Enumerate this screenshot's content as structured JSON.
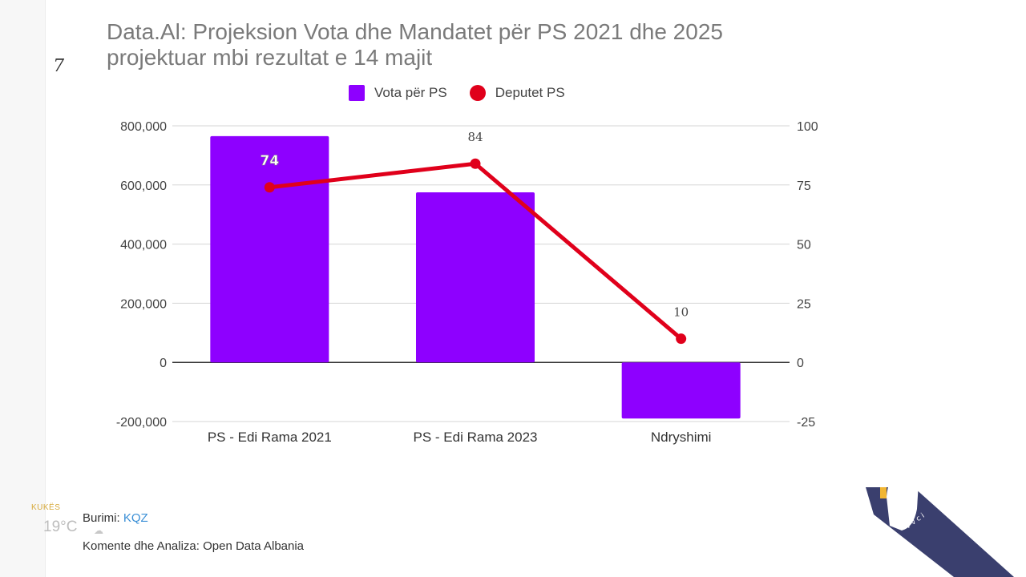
{
  "title_lines": [
    "Data.Al: Projeksion Vota dhe Mandatet për PS 2021 dhe 2025",
    "projektuar mbi rezultat e 14 majit"
  ],
  "legend": {
    "bar_label": "Vota për PS",
    "line_label": "Deputet PS"
  },
  "footer": {
    "source_prefix": "Burimi: ",
    "source_link": "KQZ",
    "comment": "Komente dhe Analiza: Open Data Albania"
  },
  "overlay": {
    "corner_mark": "7",
    "weather_city": "KUKËS",
    "weather_temp": "19°C",
    "weather_icon": "cloud-icon"
  },
  "colors": {
    "bar": "#8e00ff",
    "line": "#e0001b",
    "logo": "#3a3f6e",
    "logo_accent": "#f2b632"
  },
  "chart_data": {
    "type": "bar",
    "title": "Data.Al: Projeksion Vota dhe Mandatet për PS 2021 dhe 2025 projektuar mbi rezultat e 14 majit",
    "categories": [
      "PS - Edi Rama 2021",
      "PS - Edi Rama 2023",
      "Ndryshimi"
    ],
    "series": [
      {
        "name": "Vota për PS",
        "type": "bar",
        "axis": "left",
        "values": [
          765000,
          575000,
          -190000
        ]
      },
      {
        "name": "Deputet PS",
        "type": "line",
        "axis": "right",
        "values": [
          74,
          84,
          10
        ],
        "data_labels": [
          "74",
          "84",
          "10"
        ]
      }
    ],
    "left_axis": {
      "ylim": [
        -200000,
        800000
      ],
      "ticks": [
        800000,
        600000,
        400000,
        200000,
        0,
        -200000
      ],
      "tick_labels": [
        "800,000",
        "600,000",
        "400,000",
        "200,000",
        "0",
        "-200,000"
      ]
    },
    "right_axis": {
      "ylim": [
        -25,
        100
      ],
      "ticks": [
        100,
        75,
        50,
        25,
        0,
        -25
      ],
      "tick_labels": [
        "100",
        "75",
        "50",
        "25",
        "0",
        "-25"
      ]
    },
    "xlabel": "",
    "ylabel": "",
    "grid": true,
    "legend_position": "top-center"
  }
}
